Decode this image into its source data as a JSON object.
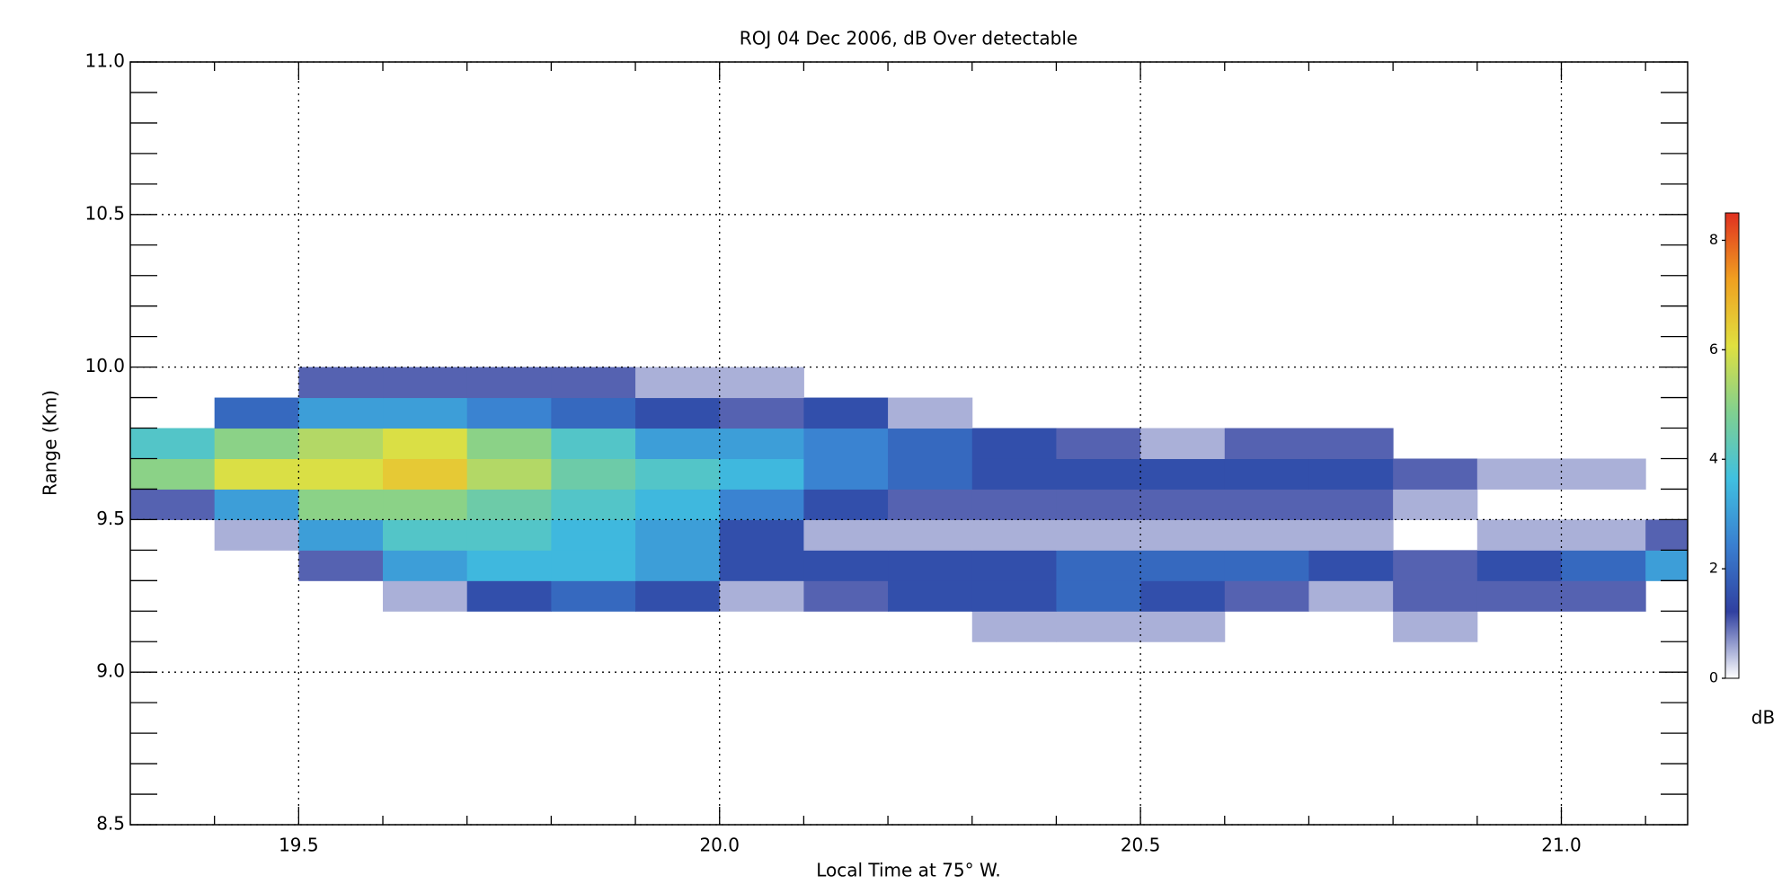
{
  "chart_data": {
    "type": "heatmap",
    "title": "ROJ 04 Dec 2006, dB Over detectable",
    "x_label": "Local Time at 75° W.",
    "y_label": "Range (Km)",
    "colorbar_label": "dB",
    "xlim": [
      19.3,
      21.15
    ],
    "ylim": [
      8.5,
      11.0
    ],
    "xticks": [
      19.5,
      {
        "value": 20,
        "label": "20.0"
      },
      20.5,
      {
        "value": 21,
        "label": "21.0"
      }
    ],
    "yticks": [
      8.5,
      {
        "value": 9,
        "label": "9.0"
      },
      9.5,
      {
        "value": 10,
        "label": "10.0"
      },
      10.5,
      {
        "value": 11,
        "label": "11.0"
      }
    ],
    "xminorticks": [
      19.4,
      19.6,
      19.7,
      19.8,
      19.9,
      20.1,
      20.2,
      20.3,
      20.4,
      20.6,
      20.7,
      20.8,
      20.9,
      21.1
    ],
    "yminorticks": [
      8.6,
      8.7,
      8.8,
      8.9,
      9.1,
      9.2,
      9.3,
      9.4,
      9.6,
      9.7,
      9.8,
      9.9,
      10.1,
      10.2,
      10.3,
      10.4,
      10.6,
      10.7,
      10.8,
      10.9
    ],
    "grid": true,
    "zlim": [
      0,
      8.5
    ],
    "zticks": [
      0,
      2,
      4,
      6,
      8
    ],
    "colorscale": [
      "#ffffff",
      "#3040a0",
      "#3a7fd0",
      "#40c0e0",
      "#80d090",
      "#e0e040",
      "#f0a020",
      "#e03020"
    ],
    "x_bins": [
      19.3,
      19.4,
      19.5,
      19.6,
      19.7,
      19.8,
      19.9,
      20.0,
      20.1,
      20.2,
      20.3,
      20.4,
      20.5,
      20.6,
      20.7,
      20.8,
      20.9,
      21.0,
      21.1,
      21.15
    ],
    "y_bins": [
      9.1,
      9.2,
      9.3,
      9.4,
      9.5,
      9.6,
      9.7,
      9.8,
      9.9,
      10.0
    ],
    "z": [
      [
        0,
        0,
        0,
        0,
        0,
        0,
        0,
        0,
        0,
        0,
        0.5,
        0.5,
        0.5,
        0,
        0,
        0.5,
        0,
        0,
        0
      ],
      [
        0,
        0,
        0,
        0.5,
        1.5,
        2,
        1.5,
        0.5,
        1,
        1.5,
        1.5,
        2,
        1.5,
        1,
        0.5,
        1,
        1,
        1,
        0
      ],
      [
        0,
        0,
        1,
        3,
        3.5,
        3.5,
        3,
        1.5,
        1.5,
        1.5,
        1.5,
        2,
        2,
        2,
        1.5,
        1,
        1.5,
        2,
        3
      ],
      [
        0,
        0.5,
        3,
        4,
        4,
        3.5,
        3,
        1.5,
        0.5,
        0.5,
        0.5,
        0.5,
        0.5,
        0.5,
        0.5,
        0,
        0.5,
        0.5,
        1
      ],
      [
        1,
        3,
        5,
        5,
        4.5,
        4,
        3.5,
        2.5,
        1.5,
        1,
        1,
        1,
        1,
        1,
        1,
        0.5,
        0,
        0,
        0
      ],
      [
        5,
        6,
        6,
        6.5,
        5.5,
        4.5,
        4,
        3.5,
        2.5,
        2,
        1.5,
        1.5,
        1.5,
        1.5,
        1.5,
        1,
        0.5,
        0.5,
        0
      ],
      [
        4,
        5,
        5.5,
        6,
        5,
        4,
        3,
        3,
        2.5,
        2,
        1.5,
        1,
        0.5,
        1,
        1,
        0,
        0,
        0,
        0
      ],
      [
        0,
        2,
        3,
        3,
        2.5,
        2,
        1.5,
        1,
        1.5,
        0.5,
        0,
        0,
        0,
        0,
        0,
        0,
        0,
        0,
        0
      ],
      [
        0,
        0,
        1,
        1,
        1,
        1,
        0.5,
        0.5,
        0,
        0,
        0,
        0,
        0,
        0,
        0,
        0,
        0,
        0,
        0
      ]
    ]
  }
}
